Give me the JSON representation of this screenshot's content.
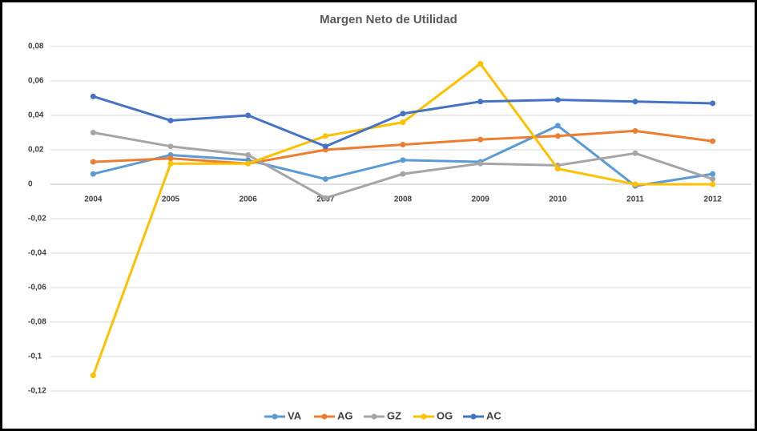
{
  "chart_data": {
    "type": "line",
    "title": "Margen Neto de Utilidad",
    "categories": [
      "2004",
      "2005",
      "2006",
      "2007",
      "2008",
      "2009",
      "2010",
      "2011",
      "2012"
    ],
    "series": [
      {
        "name": "VA",
        "color": "#5b9bd5",
        "values": [
          0.006,
          0.017,
          0.014,
          0.003,
          0.014,
          0.013,
          0.034,
          -0.001,
          0.006
        ]
      },
      {
        "name": "AG",
        "color": "#ed7d31",
        "values": [
          0.013,
          0.015,
          0.012,
          0.02,
          0.023,
          0.026,
          0.028,
          0.031,
          0.025
        ]
      },
      {
        "name": "GZ",
        "color": "#a5a5a5",
        "values": [
          0.03,
          0.022,
          0.017,
          -0.008,
          0.006,
          0.012,
          0.011,
          0.018,
          0.003
        ]
      },
      {
        "name": "OG",
        "color": "#ffc000",
        "values": [
          -0.111,
          0.012,
          0.012,
          0.028,
          0.036,
          0.07,
          0.009,
          0.0,
          0.0
        ]
      },
      {
        "name": "AC",
        "color": "#4472c4",
        "values": [
          0.051,
          0.037,
          0.04,
          0.022,
          0.041,
          0.048,
          0.049,
          0.048,
          0.047
        ]
      }
    ],
    "ylim": [
      -0.12,
      0.08
    ],
    "yticks": [
      {
        "value": 0.08,
        "label": "0,08"
      },
      {
        "value": 0.06,
        "label": "0,06"
      },
      {
        "value": 0.04,
        "label": "0,04"
      },
      {
        "value": 0.02,
        "label": "0,02"
      },
      0,
      {
        "value": -0.02,
        "label": "-0,02"
      },
      {
        "value": -0.04,
        "label": "-0,04"
      },
      {
        "value": -0.06,
        "label": "-0,06"
      },
      {
        "value": -0.08,
        "label": "-0,08"
      },
      {
        "value": -0.1,
        "label": "-0,1"
      },
      {
        "value": -0.12,
        "label": "-0,12"
      }
    ],
    "grid": true,
    "legend": "bottom"
  }
}
